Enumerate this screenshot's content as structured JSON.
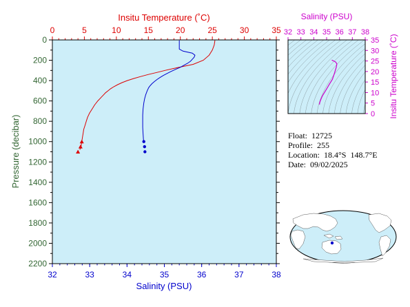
{
  "colors": {
    "temperature": "#dd0000",
    "salinity": "#0000cc",
    "pressure_axis": "#336633",
    "ts_diagram": "#cc00cc",
    "plot_background": "#cdeef9",
    "land": "#ffffff",
    "ocean": "#cdeef9"
  },
  "info": {
    "float_label": "Float:",
    "float_value": "12725",
    "profile_label": "Profile:",
    "profile_value": "255",
    "location_label": "Location:",
    "location_value": "18.4°S  148.7°E",
    "date_label": "Date:",
    "date_value": "09/02/2025"
  },
  "chart_data": [
    {
      "type": "line",
      "name": "profile",
      "x_top_label": "Insitu Temperature (˚C)",
      "x_bottom_label": "Salinity (PSU)",
      "ylabel": "Pressure (decibar)",
      "temperature_lim": [
        0,
        35
      ],
      "temperature_ticks": [
        "0",
        "5",
        "10",
        "15",
        "20",
        "25",
        "30",
        "35"
      ],
      "salinity_lim": [
        32,
        38
      ],
      "salinity_ticks": [
        "32",
        "33",
        "34",
        "35",
        "36",
        "37",
        "38"
      ],
      "pressure_lim": [
        0,
        2200
      ],
      "pressure_ticks": [
        "0",
        "200",
        "400",
        "600",
        "800",
        "1000",
        "1200",
        "1400",
        "1600",
        "1800",
        "2000",
        "2200"
      ],
      "temperature_profile": {
        "pressure": [
          5,
          50,
          100,
          150,
          200,
          240,
          260,
          280,
          300,
          320,
          340,
          360,
          380,
          400,
          420,
          440,
          460,
          480,
          500,
          520,
          540,
          560,
          580,
          600,
          640,
          680,
          720,
          760,
          800,
          840,
          880,
          920,
          960,
          1000,
          1040,
          1080
        ],
        "values": [
          25.4,
          25.3,
          25.0,
          24.5,
          23.6,
          22.0,
          20.5,
          19.0,
          17.6,
          16.3,
          15.0,
          13.8,
          12.7,
          11.7,
          10.9,
          10.2,
          9.6,
          9.1,
          8.7,
          8.3,
          8.0,
          7.7,
          7.4,
          7.1,
          6.6,
          6.2,
          5.8,
          5.5,
          5.3,
          5.1,
          4.9,
          4.8,
          4.7,
          4.6,
          4.5,
          4.3
        ],
        "markers": [
          {
            "pressure": 1000,
            "value": 4.6
          },
          {
            "pressure": 1050,
            "value": 4.4
          },
          {
            "pressure": 1100,
            "value": 4.0
          }
        ]
      },
      "salinity_profile": {
        "pressure": [
          5,
          50,
          90,
          110,
          130,
          150,
          170,
          190,
          210,
          230,
          250,
          270,
          290,
          310,
          330,
          350,
          370,
          390,
          410,
          430,
          450,
          470,
          500,
          540,
          580,
          620,
          680,
          740,
          800,
          860,
          920,
          980,
          1000
        ],
        "values": [
          35.4,
          35.4,
          35.4,
          35.5,
          35.75,
          35.82,
          35.8,
          35.75,
          35.7,
          35.62,
          35.52,
          35.42,
          35.3,
          35.18,
          35.07,
          34.97,
          34.88,
          34.8,
          34.73,
          34.67,
          34.62,
          34.58,
          34.54,
          34.5,
          34.47,
          34.45,
          34.43,
          34.42,
          34.42,
          34.42,
          34.43,
          34.44,
          34.45
        ],
        "markers": [
          {
            "pressure": 1000,
            "value": 34.45
          },
          {
            "pressure": 1050,
            "value": 34.47
          },
          {
            "pressure": 1100,
            "value": 34.48
          }
        ]
      }
    },
    {
      "type": "line",
      "name": "ts-diagram",
      "xlabel": "Salinity (PSU)",
      "ylabel": "Insitu Temperature (˚C)",
      "xlim": [
        32,
        38
      ],
      "ylim": [
        0,
        35
      ],
      "x_ticks": [
        "32",
        "33",
        "34",
        "35",
        "36",
        "37",
        "38"
      ],
      "y_ticks": [
        "0",
        "5",
        "10",
        "15",
        "20",
        "25",
        "30",
        "35"
      ],
      "ts_curve": {
        "salinity": [
          35.4,
          35.45,
          35.55,
          35.7,
          35.8,
          35.75,
          35.6,
          35.45,
          35.2,
          35.0,
          34.85,
          34.7,
          34.6,
          34.52,
          34.47,
          34.45,
          34.45
        ],
        "temperature": [
          25.4,
          25.3,
          25.0,
          24.5,
          23.6,
          22.0,
          19.0,
          16.3,
          13.8,
          11.7,
          10.2,
          8.7,
          7.4,
          6.2,
          5.3,
          4.8,
          4.3
        ]
      }
    }
  ]
}
